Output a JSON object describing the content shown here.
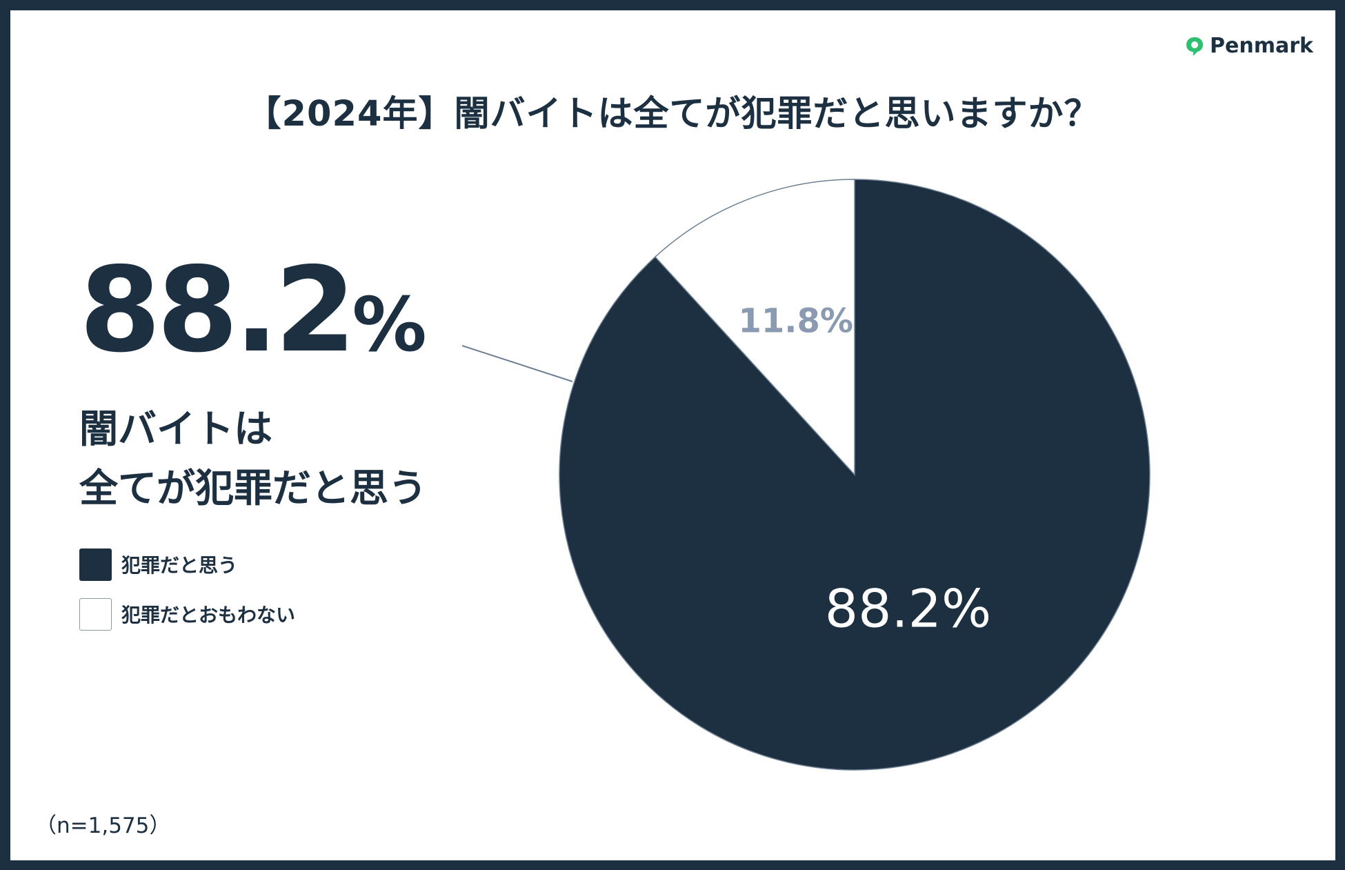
{
  "logo": {
    "text": "Penmark",
    "color": "#2fbf71"
  },
  "title": "【2024年】闇バイトは全てが犯罪だと思いますか？",
  "highlight": {
    "value": "88.2",
    "unit": "%",
    "line1": "闇バイトは",
    "line2": "全てが犯罪だと思う"
  },
  "sample_note": "（n=1,575）",
  "colors": {
    "dark": "#1c3041",
    "light": "#ffffff",
    "light_label": "#8a9ab0",
    "outline": "#6d7f92"
  },
  "chart_data": {
    "type": "pie",
    "title": "【2024年】闇バイトは全てが犯罪だと思いますか？",
    "categories": [
      "犯罪だと思う",
      "犯罪だとおもわない"
    ],
    "values": [
      88.2,
      11.8
    ],
    "labels": [
      "88.2%",
      "11.8%"
    ],
    "colors": [
      "#1c3041",
      "#ffffff"
    ],
    "label_colors": [
      "#ffffff",
      "#8a9ab0"
    ],
    "legend_position": "left",
    "start": "12 o'clock",
    "direction": "clockwise",
    "sample_size": "n=1,575"
  }
}
